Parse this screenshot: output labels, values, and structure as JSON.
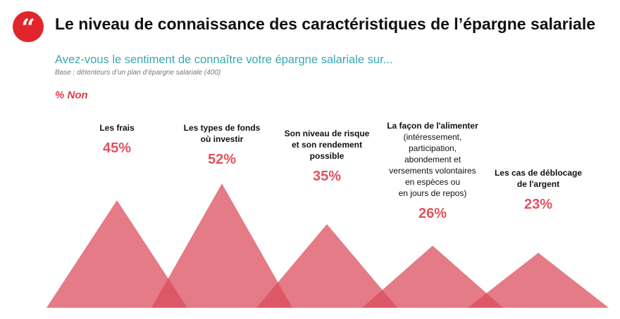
{
  "header": {
    "badge_glyph": "“",
    "title": "Le niveau de connaissance des caractéristiques de l’épargne salariale",
    "subtitle": "Avez-vous le sentiment de connaître votre épargne salariale sur...",
    "base": "Base : détenteurs d’un plan d’épargne salariale (400)",
    "pct_note": "% Non"
  },
  "colors": {
    "accent": "#e0262c",
    "triangle": "#e47b86",
    "overlap": "#dd5866",
    "value": "#e0525e",
    "subtitle": "#3aa8b4"
  },
  "chart_data": {
    "type": "area",
    "title": "Avez-vous le sentiment de connaître votre épargne salariale sur...",
    "unit": "%",
    "series_label": "% Non",
    "categories": [
      {
        "bold": "Les frais",
        "detail": []
      },
      {
        "bold": "Les types de fonds\noù investir",
        "detail": []
      },
      {
        "bold": "Son niveau de risque\net son rendement\npossible",
        "detail": []
      },
      {
        "bold": "La façon de l'alimenter",
        "detail": [
          "(intéressement,",
          "participation,",
          "abondement et",
          "versements volontaires",
          "en espèces ou",
          "en jours de repos)"
        ]
      },
      {
        "bold": "Les cas de déblocage\nde l'argent",
        "detail": []
      }
    ],
    "values": [
      45,
      52,
      35,
      26,
      23
    ],
    "value_labels": [
      "45%",
      "52%",
      "35%",
      "26%",
      "23%"
    ]
  }
}
